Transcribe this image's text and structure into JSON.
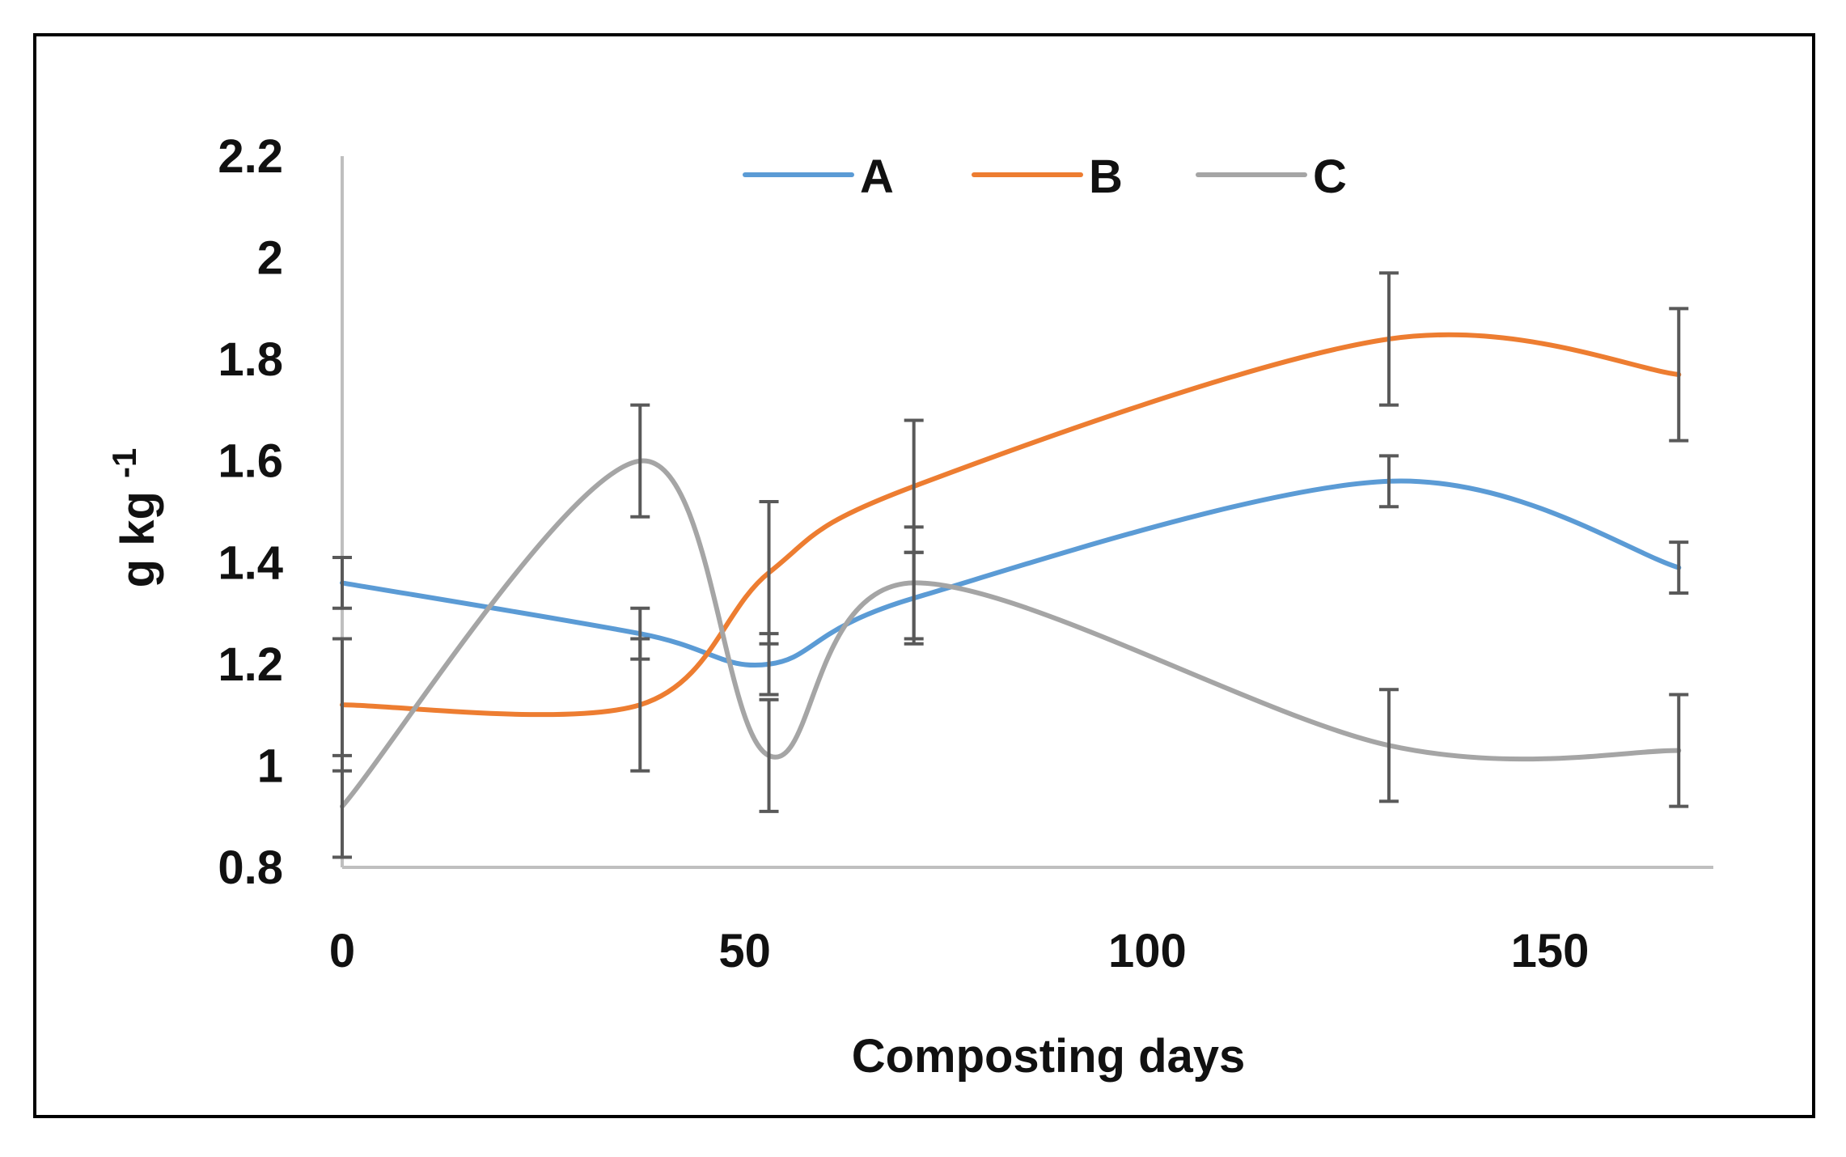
{
  "chart_data": {
    "type": "line",
    "title": "",
    "xlabel": "Composting days",
    "ylabel": "g kg",
    "ylabel_superscript": "-1",
    "xlim": [
      0,
      168
    ],
    "ylim": [
      0.8,
      2.2
    ],
    "xticks": [
      "0",
      "50",
      "100",
      "150"
    ],
    "xtick_values": [
      0,
      50,
      100,
      150
    ],
    "yticks": [
      "0.8",
      "1",
      "1.2",
      "1.4",
      "1.6",
      "1.8",
      "2",
      "2.2"
    ],
    "ytick_values": [
      0.8,
      1.0,
      1.2,
      1.4,
      1.6,
      1.8,
      2.0,
      2.2
    ],
    "grid": false,
    "smooth": true,
    "legend_position": "top-center",
    "x": [
      0,
      37,
      53,
      71,
      130,
      166
    ],
    "series": [
      {
        "name": "A",
        "color": "#5B9BD5",
        "values": [
          1.36,
          1.26,
          1.2,
          1.33,
          1.56,
          1.39
        ],
        "errors": [
          0.05,
          0.05,
          0.06,
          0.09,
          0.05,
          0.05
        ]
      },
      {
        "name": "B",
        "color": "#ED7D31",
        "values": [
          1.12,
          1.12,
          1.38,
          1.55,
          1.84,
          1.77
        ],
        "errors": [
          0.13,
          0.13,
          0.14,
          0.13,
          0.13,
          0.13
        ]
      },
      {
        "name": "C",
        "color": "#A5A5A5",
        "values": [
          0.92,
          1.6,
          1.02,
          1.36,
          1.04,
          1.03
        ],
        "errors": [
          0.1,
          0.11,
          0.11,
          0.11,
          0.11,
          0.11
        ]
      }
    ],
    "error_bar_color": "#595959",
    "axis_color": "#BFBFBF"
  }
}
